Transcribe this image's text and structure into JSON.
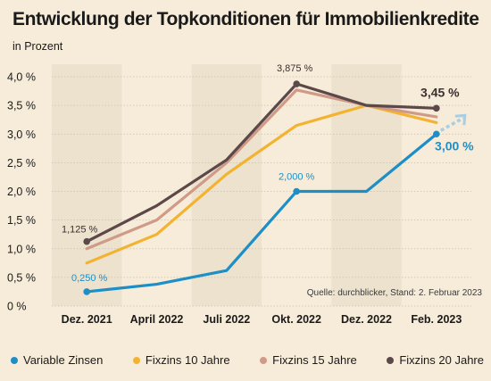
{
  "header": {
    "title": "Entwicklung der Topkonditionen für Immobilienkredite",
    "subtitle": "in Prozent"
  },
  "source_note": "Quelle: durchblicker, Stand: 2. Februar 2023",
  "colors": {
    "background": "#f6ecd9",
    "band": "#ede2ce",
    "grid": "#c9c0b0"
  },
  "chart_data": {
    "type": "line",
    "title": "Entwicklung der Topkonditionen für Immobilienkredite",
    "subtitle": "in Prozent",
    "xlabel": "",
    "ylabel": "",
    "ylim": [
      0,
      4.0
    ],
    "y_ticks": [
      "0 %",
      "0,5 %",
      "1,0 %",
      "1,5 %",
      "2,0 %",
      "2,5 %",
      "3,0 %",
      "3,5 %",
      "4,0 %"
    ],
    "categories": [
      "Dez. 2021",
      "April 2022",
      "Juli 2022",
      "Okt. 2022",
      "Dez. 2022",
      "Feb. 2023"
    ],
    "grid": "horizontal",
    "legend_position": "bottom",
    "series": [
      {
        "name": "Variable Zinsen",
        "color": "#1e8fc6",
        "values": [
          0.25,
          0.38,
          0.62,
          2.0,
          2.0,
          3.0
        ],
        "markers": true,
        "projection_color": "#a9cde2"
      },
      {
        "name": "Fixzins 10 Jahre",
        "color": "#f3b331",
        "values": [
          0.75,
          1.25,
          2.3,
          3.15,
          3.5,
          3.2
        ],
        "markers": false
      },
      {
        "name": "Fixzins 15 Jahre",
        "color": "#cf9b88",
        "values": [
          1.0,
          1.5,
          2.5,
          3.77,
          3.5,
          3.3
        ],
        "markers": false
      },
      {
        "name": "Fixzins 20 Jahre",
        "color": "#5c4848",
        "values": [
          1.125,
          1.75,
          2.55,
          3.875,
          3.5,
          3.45
        ],
        "markers": true
      }
    ],
    "annotations": [
      {
        "text": "1,125 %",
        "series": "Fixzins 20 Jahre",
        "index": 0,
        "color": "#3a2f2f",
        "bold": false
      },
      {
        "text": "0,250 %",
        "series": "Variable Zinsen",
        "index": 0,
        "color": "#1e8fc6",
        "bold": false
      },
      {
        "text": "3,875 %",
        "series": "Fixzins 20 Jahre",
        "index": 3,
        "color": "#3a2f2f",
        "bold": false
      },
      {
        "text": "2,000 %",
        "series": "Variable Zinsen",
        "index": 3,
        "color": "#1e8fc6",
        "bold": false
      },
      {
        "text": "3,45 %",
        "series": "Fixzins 20 Jahre",
        "index": 5,
        "color": "#3a2f2f",
        "bold": true
      },
      {
        "text": "3,00 %",
        "series": "Variable Zinsen",
        "index": 5,
        "color": "#1e8fc6",
        "bold": true
      }
    ]
  }
}
